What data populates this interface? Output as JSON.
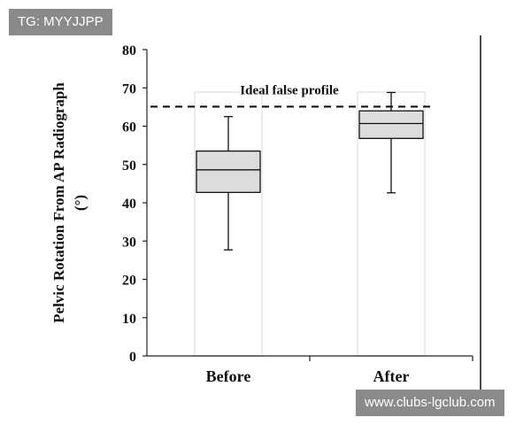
{
  "watermarks": {
    "top": "TG: MYYJJPP",
    "bottom": "www.clubs-lgclub.com"
  },
  "chart_data": {
    "type": "box",
    "ylabel_lines": [
      "Pelvic Rotation From AP Radiograph",
      "(°)"
    ],
    "ylim": [
      0,
      80
    ],
    "yticks": [
      0,
      10,
      20,
      30,
      40,
      50,
      60,
      70,
      80
    ],
    "categories": [
      "Before",
      "After"
    ],
    "boxes": [
      {
        "category": "Before",
        "min": 27.7,
        "q1": 42.7,
        "median": 48.6,
        "q3": 53.5,
        "max": 62.5
      },
      {
        "category": "After",
        "min": 42.6,
        "q1": 56.8,
        "median": 60.7,
        "q3": 64.0,
        "max": 68.8
      }
    ],
    "reference_line": {
      "value": 65.1,
      "label": "Ideal false profile",
      "style": "dashed"
    },
    "box_fill": "#dcdcdc",
    "grid": false
  }
}
